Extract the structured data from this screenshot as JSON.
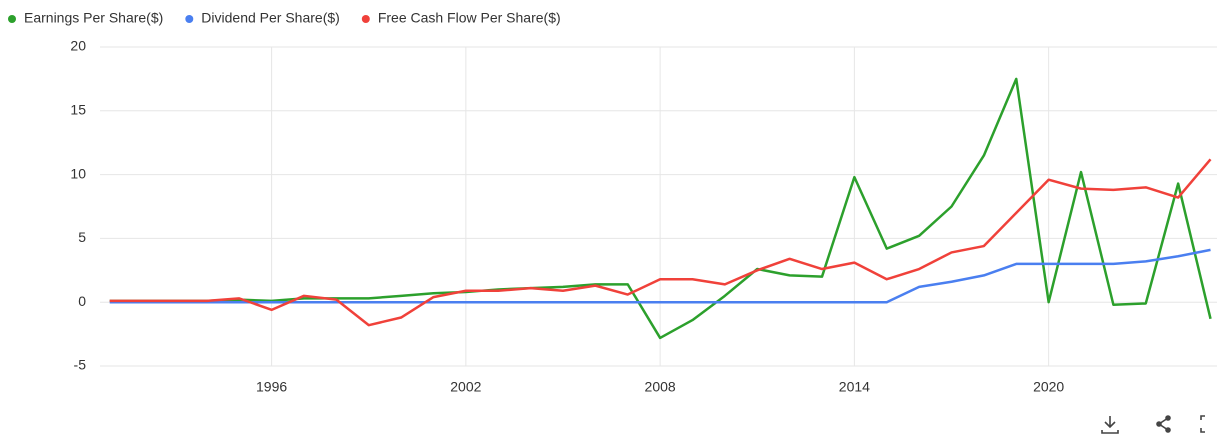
{
  "chart_data": {
    "type": "line",
    "x": [
      1991,
      1992,
      1993,
      1994,
      1995,
      1996,
      1997,
      1998,
      1999,
      2000,
      2001,
      2002,
      2003,
      2004,
      2005,
      2006,
      2007,
      2008,
      2009,
      2010,
      2011,
      2012,
      2013,
      2014,
      2015,
      2016,
      2017,
      2018,
      2019,
      2020,
      2021,
      2022,
      2023,
      2024,
      2025
    ],
    "series": [
      {
        "name": "Earnings Per Share($)",
        "color": "#2ca02c",
        "values": [
          0.1,
          0.1,
          0.1,
          0.1,
          0.2,
          0.1,
          0.3,
          0.3,
          0.3,
          0.5,
          0.7,
          0.8,
          1.0,
          1.1,
          1.2,
          1.4,
          1.4,
          -2.8,
          -1.4,
          0.5,
          2.6,
          2.1,
          2.0,
          9.8,
          4.2,
          5.2,
          7.5,
          11.5,
          17.5,
          0,
          10.2,
          -0.2,
          -0.1,
          9.3,
          -1.3
        ]
      },
      {
        "name": "Dividend Per Share($)",
        "color": "#4a7ff0",
        "values": [
          0,
          0,
          0,
          0,
          0,
          0,
          0,
          0,
          0,
          0,
          0,
          0,
          0,
          0,
          0,
          0,
          0,
          0,
          0,
          0,
          0,
          0,
          0,
          0,
          0,
          1.2,
          1.6,
          2.1,
          3.0,
          3.0,
          3.0,
          3.0,
          3.2,
          3.6,
          4.1
        ]
      },
      {
        "name": "Free Cash Flow Per Share($)",
        "color": "#f0413a",
        "values": [
          0.1,
          0.1,
          0.1,
          0.1,
          0.3,
          -0.6,
          0.5,
          0.2,
          -1.8,
          -1.2,
          0.4,
          0.9,
          0.9,
          1.1,
          0.9,
          1.3,
          0.6,
          1.8,
          1.8,
          1.4,
          2.5,
          3.4,
          2.6,
          3.1,
          1.8,
          2.6,
          3.9,
          4.4,
          7.0,
          9.6,
          8.9,
          8.8,
          9.0,
          8.2,
          11.2
        ]
      }
    ],
    "xlim": [
      1990.7,
      2025.2
    ],
    "xticks": [
      1996,
      2002,
      2008,
      2014,
      2020
    ],
    "ylim": [
      -5,
      20
    ],
    "yticks": [
      -5,
      0,
      5,
      10,
      15,
      20
    ],
    "grid": true,
    "legend": "top-left"
  }
}
